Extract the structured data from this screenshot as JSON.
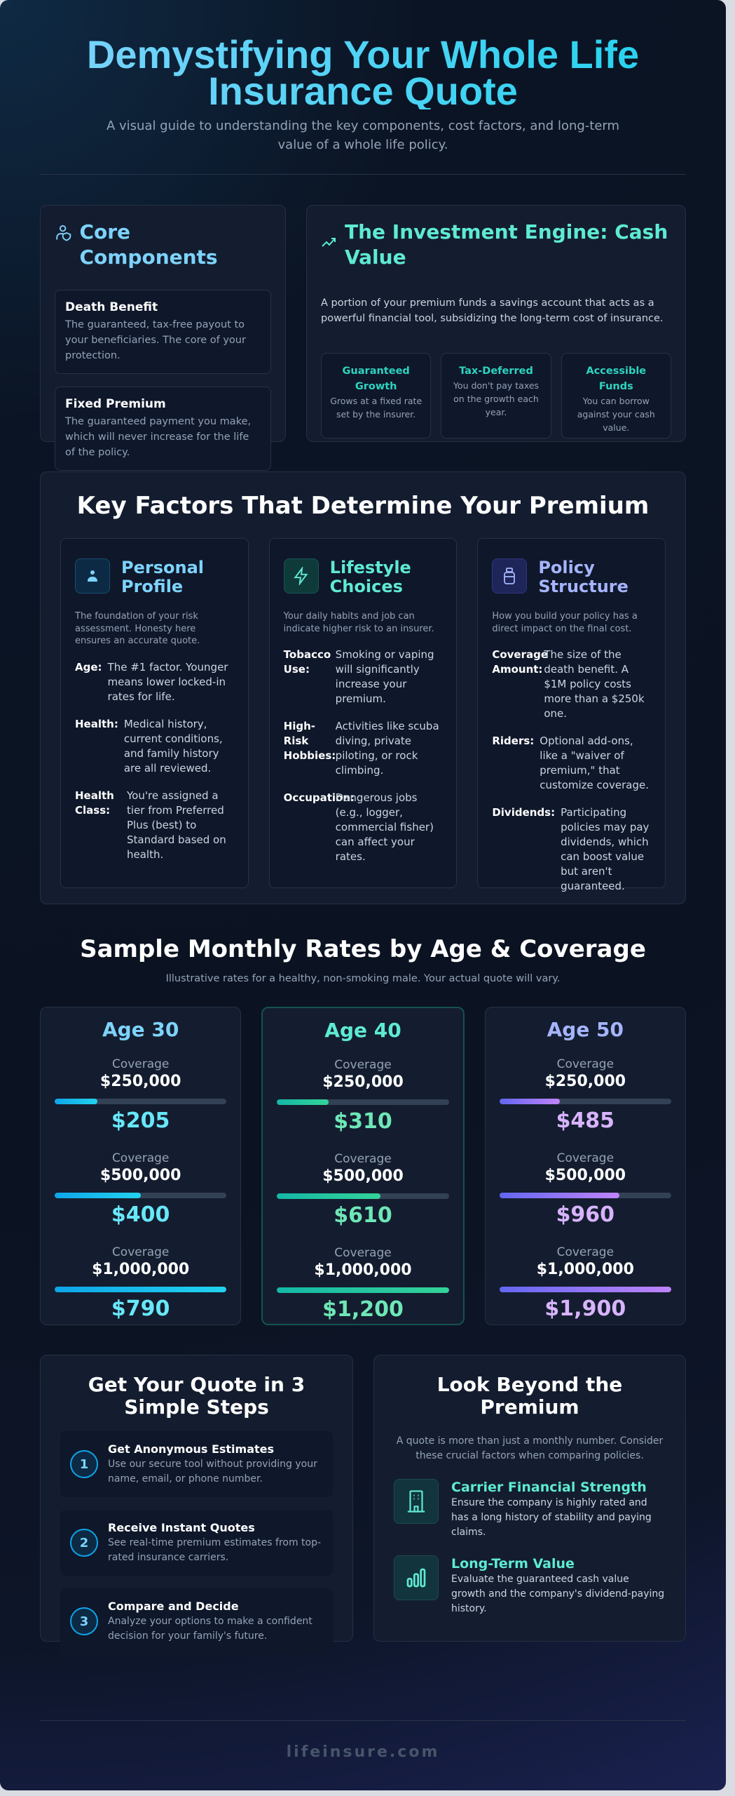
{
  "header": {
    "title_line1": "Demystifying Your Whole Life",
    "title_line2": "Insurance Quote",
    "subtitle": "A visual guide to understanding the key components, cost factors, and long-term value of a whole life policy."
  },
  "core": {
    "icon": "user-shield-icon",
    "title": "Core Components",
    "items": [
      {
        "title": "Death Benefit",
        "text": "The guaranteed, tax-free payout to your beneficiaries. The core of your protection."
      },
      {
        "title": "Fixed Premium",
        "text": "The guaranteed payment you make, which will never increase for the life of the policy."
      }
    ]
  },
  "engine": {
    "icon": "trending-up-icon",
    "title": "The Investment Engine: Cash Value",
    "lead": "A portion of your premium funds a savings account that acts as a powerful financial tool, subsidizing the long-term cost of insurance.",
    "features": [
      {
        "title": "Guaranteed Growth",
        "text": "Grows at a fixed rate set by the insurer."
      },
      {
        "title": "Tax-Deferred",
        "text": "You don't pay taxes on the growth each year."
      },
      {
        "title": "Accessible Funds",
        "text": "You can borrow against your cash value."
      }
    ]
  },
  "factors": {
    "title": "Key Factors That Determine Your Premium",
    "columns": [
      {
        "icon": "user-icon",
        "color": "#7dd3fc",
        "title": "Personal Profile",
        "desc": "The foundation of your risk assessment. Honesty here ensures an accurate quote.",
        "items": [
          {
            "k": "Age:",
            "v": "The #1 factor. Younger means lower locked-in rates for life."
          },
          {
            "k": "Health:",
            "v": "Medical history, current conditions, and family history are all reviewed."
          },
          {
            "k": "Health Class:",
            "v": "You're assigned a tier from Preferred Plus (best) to Standard based on health."
          }
        ]
      },
      {
        "icon": "lightning-icon",
        "color": "#5eead4",
        "title": "Lifestyle Choices",
        "desc": "Your daily habits and job can indicate higher risk to an insurer.",
        "items": [
          {
            "k": "Tobacco Use:",
            "v": "Smoking or vaping will significantly increase your premium."
          },
          {
            "k": "High-Risk Hobbies:",
            "v": "Activities like scuba diving, private piloting, or rock climbing."
          },
          {
            "k": "Occupation:",
            "v": "Dangerous jobs (e.g., logger, commercial fisher) can affect your rates."
          }
        ]
      },
      {
        "icon": "jar-icon",
        "color": "#a5b4fc",
        "title": "Policy Structure",
        "desc": "How you build your policy has a direct impact on the final cost.",
        "items": [
          {
            "k": "Coverage Amount:",
            "v": "The size of the death benefit. A $1M policy costs more than a $250k one."
          },
          {
            "k": "Riders:",
            "v": "Optional add-ons, like a \"waiver of premium,\" that customize coverage."
          },
          {
            "k": "Dividends:",
            "v": "Participating policies may pay dividends, which can boost value but aren't guaranteed."
          }
        ]
      }
    ]
  },
  "rates": {
    "title": "Sample Monthly Rates by Age & Coverage",
    "subtitle": "Illustrative rates for a healthy, non-smoking male. Your actual quote will vary.",
    "coverage_label": "Coverage",
    "cards": [
      {
        "age": "Age 30",
        "color": "#7dd3fc",
        "price_color": "#67e8f9",
        "gradient": [
          "#0ea5e9",
          "#22d3ee"
        ],
        "tiers": [
          {
            "coverage": "$250,000",
            "price": "$205",
            "fill_pct": 25
          },
          {
            "coverage": "$500,000",
            "price": "$400",
            "fill_pct": 50
          },
          {
            "coverage": "$1,000,000",
            "price": "$790",
            "fill_pct": 100
          }
        ]
      },
      {
        "age": "Age 40",
        "color": "#5eead4",
        "price_color": "#6ee7b7",
        "gradient": [
          "#14b8a6",
          "#34d399"
        ],
        "highlighted": true,
        "tiers": [
          {
            "coverage": "$250,000",
            "price": "$310",
            "fill_pct": 30
          },
          {
            "coverage": "$500,000",
            "price": "$610",
            "fill_pct": 60
          },
          {
            "coverage": "$1,000,000",
            "price": "$1,200",
            "fill_pct": 100
          }
        ]
      },
      {
        "age": "Age 50",
        "color": "#a5b4fc",
        "price_color": "#d8b4fe",
        "gradient": [
          "#6366f1",
          "#c084fc"
        ],
        "tiers": [
          {
            "coverage": "$250,000",
            "price": "$485",
            "fill_pct": 35
          },
          {
            "coverage": "$500,000",
            "price": "$960",
            "fill_pct": 70
          },
          {
            "coverage": "$1,000,000",
            "price": "$1,900",
            "fill_pct": 100
          }
        ]
      }
    ]
  },
  "steps": {
    "title": "Get Your Quote in 3 Simple Steps",
    "items": [
      {
        "n": "1",
        "title": "Get Anonymous Estimates",
        "text": "Use our secure tool without providing your name, email, or phone number."
      },
      {
        "n": "2",
        "title": "Receive Instant Quotes",
        "text": "See real-time premium estimates from top-rated insurance carriers."
      },
      {
        "n": "3",
        "title": "Compare and Decide",
        "text": "Analyze your options to make a confident decision for your family's future."
      }
    ]
  },
  "beyond": {
    "title": "Look Beyond the Premium",
    "lead": "A quote is more than just a monthly number. Consider these crucial factors when comparing policies.",
    "items": [
      {
        "icon": "building-icon",
        "title": "Carrier Financial Strength",
        "text": "Ensure the company is highly rated and has a long history of stability and paying claims."
      },
      {
        "icon": "bar-chart-icon",
        "title": "Long-Term Value",
        "text": "Evaluate the guaranteed cash value growth and the company's dividend-paying history."
      }
    ]
  },
  "footer": {
    "brand": "lifeinsure.com"
  }
}
